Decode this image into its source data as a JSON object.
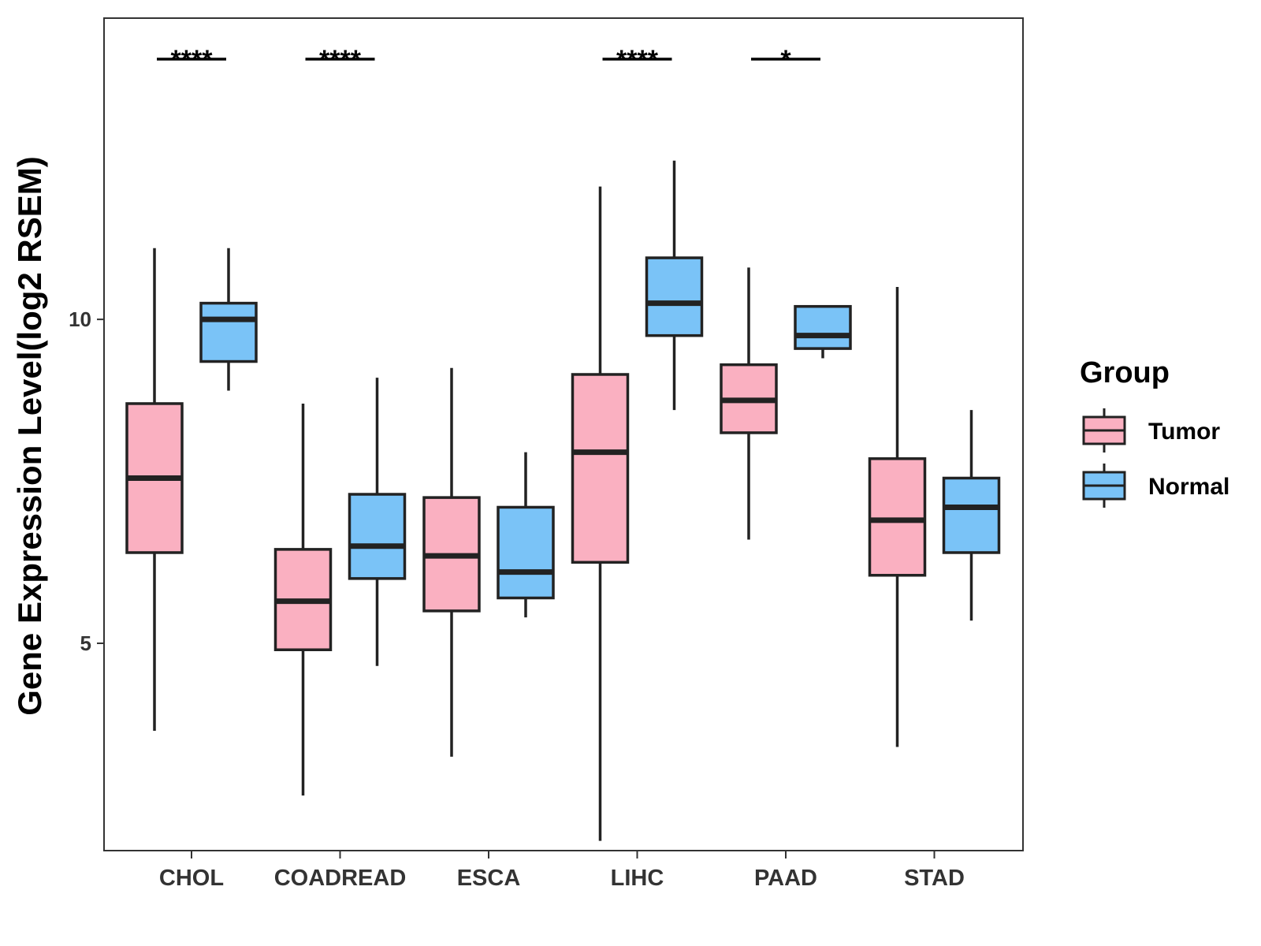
{
  "chart_data": {
    "type": "boxplot",
    "title": "",
    "xlabel": "",
    "ylabel": "Gene Expression Level(log2 RSEM)",
    "ylim": [
      1.8,
      14.65
    ],
    "yticks": [
      5,
      10
    ],
    "categories": [
      "CHOL",
      "COADREAD",
      "ESCA",
      "LIHC",
      "PAAD",
      "STAD"
    ],
    "legend": {
      "title": "Group",
      "position": "right",
      "entries": [
        {
          "name": "Tumor",
          "color": "#FAB0C1"
        },
        {
          "name": "Normal",
          "color": "#7AC3F7"
        }
      ]
    },
    "series": [
      {
        "name": "Tumor",
        "color": "#FAB0C1",
        "boxes": [
          {
            "category": "CHOL",
            "min": 3.65,
            "q1": 6.4,
            "median": 7.55,
            "q3": 8.7,
            "max": 11.1
          },
          {
            "category": "COADREAD",
            "min": 2.65,
            "q1": 4.9,
            "median": 5.65,
            "q3": 6.45,
            "max": 8.7
          },
          {
            "category": "ESCA",
            "min": 3.25,
            "q1": 5.5,
            "median": 6.35,
            "q3": 7.25,
            "max": 9.25
          },
          {
            "category": "LIHC",
            "min": 1.95,
            "q1": 6.25,
            "median": 7.95,
            "q3": 9.15,
            "max": 12.05
          },
          {
            "category": "PAAD",
            "min": 6.6,
            "q1": 8.25,
            "median": 8.75,
            "q3": 9.3,
            "max": 10.8
          },
          {
            "category": "STAD",
            "min": 3.4,
            "q1": 6.05,
            "median": 6.9,
            "q3": 7.85,
            "max": 10.5
          }
        ]
      },
      {
        "name": "Normal",
        "color": "#7AC3F7",
        "boxes": [
          {
            "category": "CHOL",
            "min": 8.9,
            "q1": 9.35,
            "median": 10.0,
            "q3": 10.25,
            "max": 11.1
          },
          {
            "category": "COADREAD",
            "min": 4.65,
            "q1": 6.0,
            "median": 6.5,
            "q3": 7.3,
            "max": 9.1
          },
          {
            "category": "ESCA",
            "min": 5.4,
            "q1": 5.7,
            "median": 6.1,
            "q3": 7.1,
            "max": 7.95
          },
          {
            "category": "LIHC",
            "min": 8.6,
            "q1": 9.75,
            "median": 10.25,
            "q3": 10.95,
            "max": 12.45
          },
          {
            "category": "PAAD",
            "min": 9.4,
            "q1": 9.55,
            "median": 9.75,
            "q3": 10.2,
            "max": 10.2
          },
          {
            "category": "STAD",
            "min": 5.35,
            "q1": 6.4,
            "median": 7.1,
            "q3": 7.55,
            "max": 8.6
          }
        ]
      }
    ],
    "significance": [
      {
        "category": "CHOL",
        "label": "****"
      },
      {
        "category": "COADREAD",
        "label": "****"
      },
      {
        "category": "LIHC",
        "label": "****"
      },
      {
        "category": "PAAD",
        "label": "*"
      }
    ]
  }
}
